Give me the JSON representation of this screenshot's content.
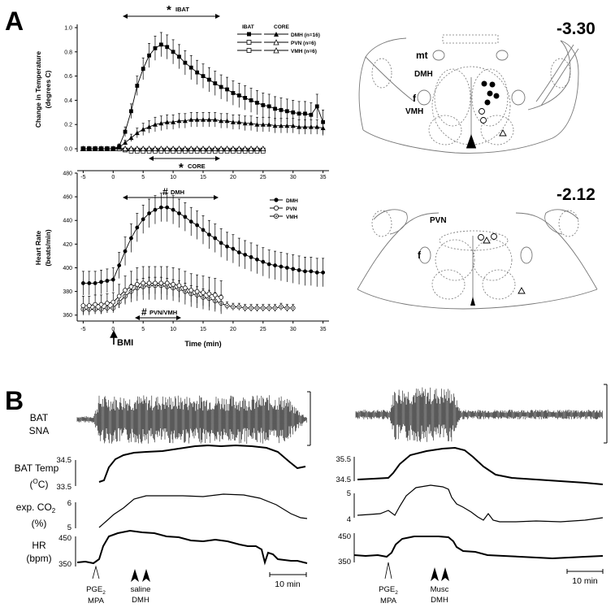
{
  "panel_a": {
    "letter": "A",
    "top_chart": {
      "ylabel_line1": "Change in Temperature",
      "ylabel_line2": "(degrees C)",
      "yticks": [
        "0.0",
        "0.2",
        "0.4",
        "0.6",
        "0.8",
        "1.0"
      ],
      "annotation_ibat": "IBAT",
      "annotation_core": "CORE",
      "annotation_star": "*",
      "legend": {
        "col1_header": "IBAT",
        "col2_header": "CORE",
        "rows": [
          "DMH (n=16)",
          "PVN (n=6)",
          "VMH (n=6)"
        ]
      }
    },
    "bottom_chart": {
      "ylabel_line1": "Heart Rate",
      "ylabel_line2": "(beats/min)",
      "yticks": [
        "360",
        "380",
        "400",
        "420",
        "440",
        "460",
        "480"
      ],
      "annotation_dmh": "DMH",
      "annotation_pvn_vmh": "PVN/VMH",
      "annotation_hash": "#",
      "legend": [
        "DMH",
        "PVN",
        "VMH"
      ]
    },
    "xticks": [
      "-5",
      "0",
      "5",
      "10",
      "15",
      "20",
      "25",
      "30",
      "35"
    ],
    "xlabel": "Time (min)",
    "bmi_label": "BMI",
    "brain_top": {
      "level": "-3.30",
      "labels": [
        "mt",
        "DMH",
        "f",
        "VMH"
      ]
    },
    "brain_bottom": {
      "level": "-2.12",
      "labels": [
        "PVN",
        "f"
      ]
    }
  },
  "panel_b": {
    "letter": "B",
    "row_labels": {
      "sna_line1": "BAT",
      "sna_line2": "SNA",
      "temp": "BAT Temp",
      "temp_unit_prefix": "(",
      "temp_unit_sup": "O",
      "temp_unit_suffix": "C)",
      "co2": "exp. CO",
      "co2_sub": "2",
      "co2_unit": "(%)",
      "hr_line1": "HR",
      "hr_line2": "(bpm)"
    },
    "left": {
      "temp_ticks": [
        "34.5",
        "33.5"
      ],
      "co2_ticks": [
        "6",
        "5"
      ],
      "hr_ticks": [
        "450",
        "350"
      ],
      "marker1_line1": "PGE",
      "marker1_sub": "2",
      "marker1_line2": "MPA",
      "marker2_line1": "saline",
      "marker2_line2": "DMH",
      "scale": "10 min"
    },
    "right": {
      "temp_ticks": [
        "35.5",
        "34.5"
      ],
      "co2_ticks": [
        "5",
        "4"
      ],
      "hr_ticks": [
        "450",
        "350"
      ],
      "marker1_line1": "PGE",
      "marker1_sub": "2",
      "marker1_line2": "MPA",
      "marker2_line1": "Musc",
      "marker2_line2": "DMH",
      "scale": "10 min"
    }
  },
  "chart_data": [
    {
      "type": "line",
      "title": "",
      "xlabel": "Time (min)",
      "ylabel": "Change in Temperature (degrees C)",
      "xlim": [
        -6,
        36
      ],
      "ylim": [
        0,
        1.0
      ],
      "x": [
        -5,
        -4,
        -3,
        -2,
        -1,
        0,
        1,
        2,
        3,
        4,
        5,
        6,
        7,
        8,
        9,
        10,
        11,
        12,
        13,
        14,
        15,
        16,
        17,
        18,
        19,
        20,
        21,
        22,
        23,
        24,
        25,
        26,
        27,
        28,
        29,
        30,
        31,
        32,
        33,
        34,
        35
      ],
      "series": [
        {
          "name": "IBAT DMH (n=16)",
          "marker": "filled-square",
          "values": [
            0,
            0,
            0,
            0,
            0,
            0,
            0.02,
            0.14,
            0.31,
            0.52,
            0.66,
            0.77,
            0.83,
            0.86,
            0.84,
            0.8,
            0.76,
            0.71,
            0.67,
            0.63,
            0.6,
            0.57,
            0.54,
            0.51,
            0.49,
            0.46,
            0.44,
            0.42,
            0.4,
            0.38,
            0.36,
            0.35,
            0.33,
            0.32,
            0.31,
            0.3,
            0.29,
            0.29,
            0.28,
            0.35,
            0.22
          ],
          "error": [
            0,
            0,
            0,
            0,
            0,
            0,
            0.02,
            0.04,
            0.06,
            0.08,
            0.09,
            0.1,
            0.1,
            0.1,
            0.1,
            0.1,
            0.1,
            0.1,
            0.1,
            0.1,
            0.1,
            0.1,
            0.1,
            0.1,
            0.1,
            0.1,
            0.1,
            0.1,
            0.1,
            0.1,
            0.1,
            0.1,
            0.1,
            0.1,
            0.1,
            0.1,
            0.1,
            0.1,
            0.1,
            0.1,
            0.1
          ]
        },
        {
          "name": "CORE DMH (n=16)",
          "marker": "filled-triangle",
          "values": [
            0,
            0,
            0,
            0,
            0,
            0,
            0.01,
            0.05,
            0.09,
            0.13,
            0.16,
            0.18,
            0.2,
            0.21,
            0.22,
            0.22,
            0.23,
            0.23,
            0.24,
            0.24,
            0.24,
            0.24,
            0.24,
            0.23,
            0.23,
            0.22,
            0.22,
            0.21,
            0.21,
            0.2,
            0.2,
            0.2,
            0.19,
            0.19,
            0.19,
            0.19,
            0.18,
            0.18,
            0.18,
            0.18,
            0.17
          ],
          "error": [
            0,
            0,
            0,
            0,
            0,
            0,
            0.01,
            0.02,
            0.03,
            0.04,
            0.05,
            0.05,
            0.06,
            0.06,
            0.06,
            0.06,
            0.06,
            0.06,
            0.06,
            0.06,
            0.06,
            0.06,
            0.06,
            0.06,
            0.06,
            0.06,
            0.06,
            0.06,
            0.06,
            0.06,
            0.06,
            0.06,
            0.06,
            0.06,
            0.06,
            0.06,
            0.06,
            0.06,
            0.06,
            0.06,
            0.06
          ]
        },
        {
          "name": "IBAT PVN (n=6)",
          "marker": "open-square",
          "values": [
            0,
            0,
            0,
            0,
            0,
            0,
            0,
            -0.01,
            -0.01,
            -0.01,
            -0.01,
            -0.01,
            -0.01,
            -0.01,
            -0.01,
            -0.01,
            -0.01,
            -0.01,
            -0.01,
            -0.01,
            -0.01,
            -0.01,
            -0.01,
            -0.01,
            -0.01,
            -0.01,
            -0.01,
            -0.01,
            -0.01,
            -0.01,
            -0.01,
            null,
            null,
            null,
            null,
            null,
            null,
            null,
            null,
            null,
            null
          ]
        },
        {
          "name": "CORE PVN (n=6)",
          "marker": "open-triangle",
          "values": [
            0,
            0,
            0,
            0,
            0,
            0,
            0,
            0,
            0,
            0,
            0,
            0,
            0,
            0,
            0,
            0,
            0,
            0,
            0,
            0,
            0,
            0,
            0,
            0,
            0,
            0,
            0,
            0,
            0,
            0,
            0,
            null,
            null,
            null,
            null,
            null,
            null,
            null,
            null,
            null,
            null
          ]
        },
        {
          "name": "IBAT VMH (n=6)",
          "marker": "open-square",
          "values": [
            0,
            0,
            0,
            0,
            0,
            0,
            0,
            -0.01,
            -0.02,
            -0.02,
            -0.02,
            -0.02,
            -0.02,
            -0.02,
            -0.02,
            -0.02,
            -0.02,
            -0.02,
            -0.02,
            -0.02,
            -0.02,
            -0.02,
            -0.02,
            -0.02,
            -0.02,
            -0.02,
            -0.02,
            -0.02,
            -0.02,
            -0.02,
            -0.02,
            null,
            null,
            null,
            null,
            null,
            null,
            null,
            null,
            null,
            null
          ]
        },
        {
          "name": "CORE VMH (n=6)",
          "marker": "open-triangle",
          "values": [
            0,
            0,
            0,
            0,
            0,
            0,
            0,
            0,
            0,
            0,
            0,
            0,
            0,
            0,
            0,
            0,
            0,
            0,
            0,
            0,
            0,
            0,
            0,
            0,
            0,
            0,
            0,
            0,
            0,
            0,
            0,
            null,
            null,
            null,
            null,
            null,
            null,
            null,
            null,
            null,
            null
          ]
        }
      ]
    },
    {
      "type": "line",
      "title": "",
      "xlabel": "Time (min)",
      "ylabel": "Heart Rate (beats/min)",
      "xlim": [
        -6,
        36
      ],
      "ylim": [
        355,
        480
      ],
      "x": [
        -5,
        -4,
        -3,
        -2,
        -1,
        0,
        1,
        2,
        3,
        4,
        5,
        6,
        7,
        8,
        9,
        10,
        11,
        12,
        13,
        14,
        15,
        16,
        17,
        18,
        19,
        20,
        21,
        22,
        23,
        24,
        25,
        26,
        27,
        28,
        29,
        30,
        31,
        32,
        33,
        34,
        35
      ],
      "series": [
        {
          "name": "DMH",
          "marker": "filled-circle",
          "values": [
            387,
            387,
            387,
            388,
            389,
            390,
            402,
            414,
            425,
            434,
            441,
            446,
            449,
            451,
            451,
            449,
            446,
            443,
            439,
            436,
            432,
            428,
            425,
            421,
            418,
            416,
            413,
            411,
            409,
            407,
            405,
            403,
            402,
            401,
            400,
            399,
            398,
            397,
            397,
            396,
            396
          ],
          "error": [
            10,
            10,
            10,
            10,
            10,
            10,
            11,
            12,
            12,
            12,
            12,
            12,
            12,
            12,
            12,
            12,
            12,
            12,
            12,
            12,
            12,
            12,
            12,
            12,
            12,
            12,
            12,
            12,
            12,
            12,
            12,
            12,
            12,
            12,
            12,
            12,
            12,
            12,
            12,
            12,
            12
          ]
        },
        {
          "name": "PVN",
          "marker": "open-circle",
          "values": [
            368,
            368,
            369,
            369,
            370,
            371,
            376,
            381,
            384,
            386,
            387,
            387,
            387,
            387,
            387,
            386,
            385,
            383,
            381,
            380,
            379,
            378,
            377,
            375,
            null,
            null,
            null,
            null,
            null,
            null,
            null,
            null,
            null,
            null,
            null,
            null,
            null,
            null,
            null,
            null,
            null
          ],
          "error": [
            8,
            8,
            8,
            8,
            8,
            8,
            10,
            12,
            13,
            14,
            14,
            14,
            14,
            14,
            14,
            14,
            14,
            14,
            14,
            14,
            14,
            14,
            14,
            14,
            null,
            null,
            null,
            null,
            null,
            null,
            null,
            null,
            null,
            null,
            null,
            null,
            null,
            null,
            null,
            null,
            null
          ]
        },
        {
          "name": "VMH",
          "marker": "open-circle-dot",
          "values": [
            365,
            365,
            365,
            365,
            366,
            366,
            371,
            376,
            380,
            383,
            384,
            385,
            385,
            385,
            384,
            383,
            382,
            380,
            378,
            377,
            375,
            374,
            372,
            370,
            368,
            367,
            367,
            366,
            366,
            366,
            366,
            366,
            366,
            367,
            366,
            366,
            null,
            null,
            null,
            null,
            null
          ],
          "error": [
            4,
            4,
            4,
            4,
            4,
            4,
            5,
            6,
            6,
            7,
            7,
            7,
            7,
            7,
            7,
            7,
            7,
            7,
            7,
            7,
            7,
            7,
            7,
            7,
            3,
            3,
            3,
            3,
            3,
            3,
            3,
            3,
            3,
            3,
            3,
            3,
            null,
            null,
            null,
            null,
            null
          ]
        }
      ]
    }
  ]
}
